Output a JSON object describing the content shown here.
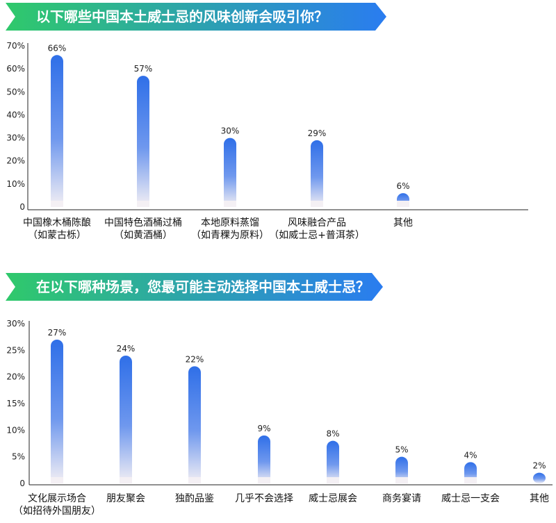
{
  "colors": {
    "banner_start": "#2fc96b",
    "banner_end": "#2a7cf0",
    "bar_top": "#2f6fe8",
    "bar_bottom": "#f4f0f4",
    "axis": "#222222"
  },
  "chart_data": [
    {
      "type": "bar",
      "title": "以下哪些中国本土威士忌的风味创新会吸引你？",
      "categories": [
        [
          "中国橡木桶陈酿",
          "（如蒙古栎）"
        ],
        [
          "中国特色酒桶过桶",
          "（如黄酒桶）"
        ],
        [
          "本地原料蒸馏",
          "（如青稞为原料）"
        ],
        [
          "风味融合产品",
          "（如威士忌+普洱茶）"
        ],
        [
          "其他"
        ]
      ],
      "values": [
        66,
        57,
        30,
        29,
        6
      ],
      "value_labels": [
        "66%",
        "57%",
        "30%",
        "29%",
        "6%"
      ],
      "y_ticks": [
        "0",
        "10%",
        "20%",
        "30%",
        "40%",
        "50%",
        "60%",
        "70%"
      ],
      "ylim": [
        0,
        70
      ]
    },
    {
      "type": "bar",
      "title": "在以下哪种场景，您最可能主动选择中国本土威士忌？",
      "categories": [
        [
          "文化展示场合",
          "（如招待外国朋友）"
        ],
        [
          "朋友聚会"
        ],
        [
          "独酌品鉴"
        ],
        [
          "几乎不会选择"
        ],
        [
          "威士忌展会"
        ],
        [
          "商务宴请"
        ],
        [
          "威士忌一支会"
        ],
        [
          "其他"
        ]
      ],
      "values": [
        27,
        24,
        22,
        9,
        8,
        5,
        4,
        2
      ],
      "value_labels": [
        "27%",
        "24%",
        "22%",
        "9%",
        "8%",
        "5%",
        "4%",
        "2%"
      ],
      "y_ticks": [
        "0",
        "5%",
        "10%",
        "15%",
        "20%",
        "25%",
        "30%"
      ],
      "ylim": [
        0,
        30
      ]
    }
  ]
}
